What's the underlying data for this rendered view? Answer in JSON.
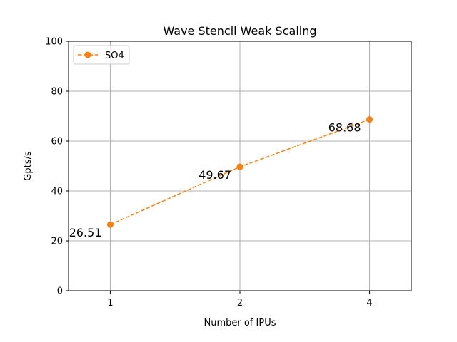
{
  "chart_data": {
    "type": "line",
    "title": "Wave Stencil Weak Scaling",
    "xlabel": "Number of IPUs",
    "ylabel": "Gpts/s",
    "x_scale": "log2",
    "xlim": [
      0.8,
      5
    ],
    "ylim": [
      0,
      100
    ],
    "xticks": [
      1,
      2,
      4
    ],
    "yticks": [
      0,
      20,
      40,
      60,
      80,
      100
    ],
    "grid": true,
    "legend_location": "top-left",
    "series": [
      {
        "name": "SO4",
        "color": "#ff7f0e",
        "line_style": "dashed",
        "marker": "circle",
        "x": [
          1,
          2,
          4
        ],
        "y": [
          26.51,
          49.67,
          68.68
        ],
        "labels": [
          "26.51",
          "49.67",
          "68.68"
        ]
      }
    ]
  }
}
